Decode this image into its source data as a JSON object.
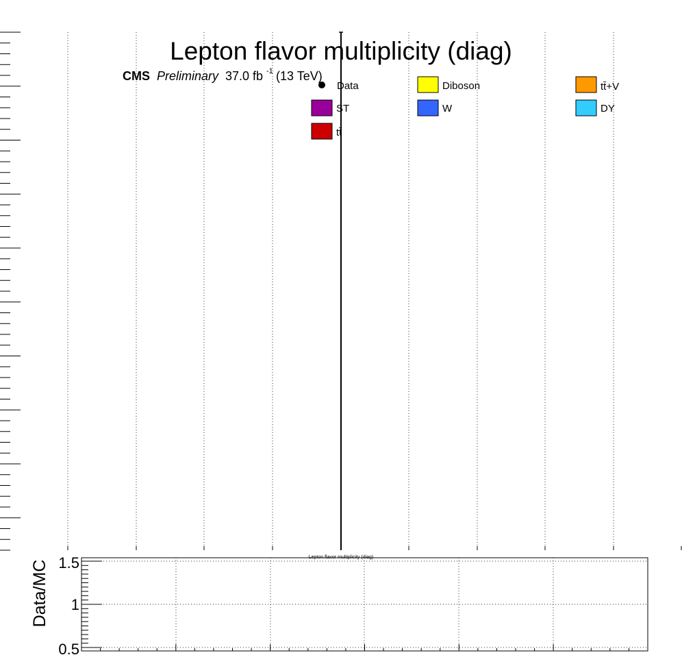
{
  "chart_data": [
    {
      "type": "bar",
      "title": "Lepton flavor multiplicity (diag)",
      "cms_label": "CMS",
      "preliminary_label": "Preliminary",
      "lumi_value": "37.0 fb",
      "lumi_exponent": "-1",
      "energy_label": "(13 TeV)",
      "xlabel": "",
      "ylabel": "",
      "grid": "vertical dotted",
      "legend_position": "top",
      "legend": [
        {
          "name": "Data",
          "style": "marker",
          "color": "#000000"
        },
        {
          "name": "Diboson",
          "style": "box",
          "color": "#ffff00"
        },
        {
          "name": "tt̄+V",
          "style": "box",
          "color": "#ff9900"
        },
        {
          "name": "ST",
          "style": "box",
          "color": "#990099"
        },
        {
          "name": "W",
          "style": "box",
          "color": "#3366ff"
        },
        {
          "name": "DY",
          "style": "box",
          "color": "#33ccff"
        },
        {
          "name": "tt̄",
          "style": "box",
          "color": "#cc0000"
        }
      ],
      "series": []
    },
    {
      "type": "line",
      "title": "",
      "xlabel": "Lepton flavor multiplicity (diag)",
      "ylabel": "Data/MC",
      "ylim": [
        0.5,
        1.5
      ],
      "yticks": [
        "1.5",
        "1",
        "0.5"
      ],
      "grid": "both dotted",
      "series": []
    }
  ]
}
